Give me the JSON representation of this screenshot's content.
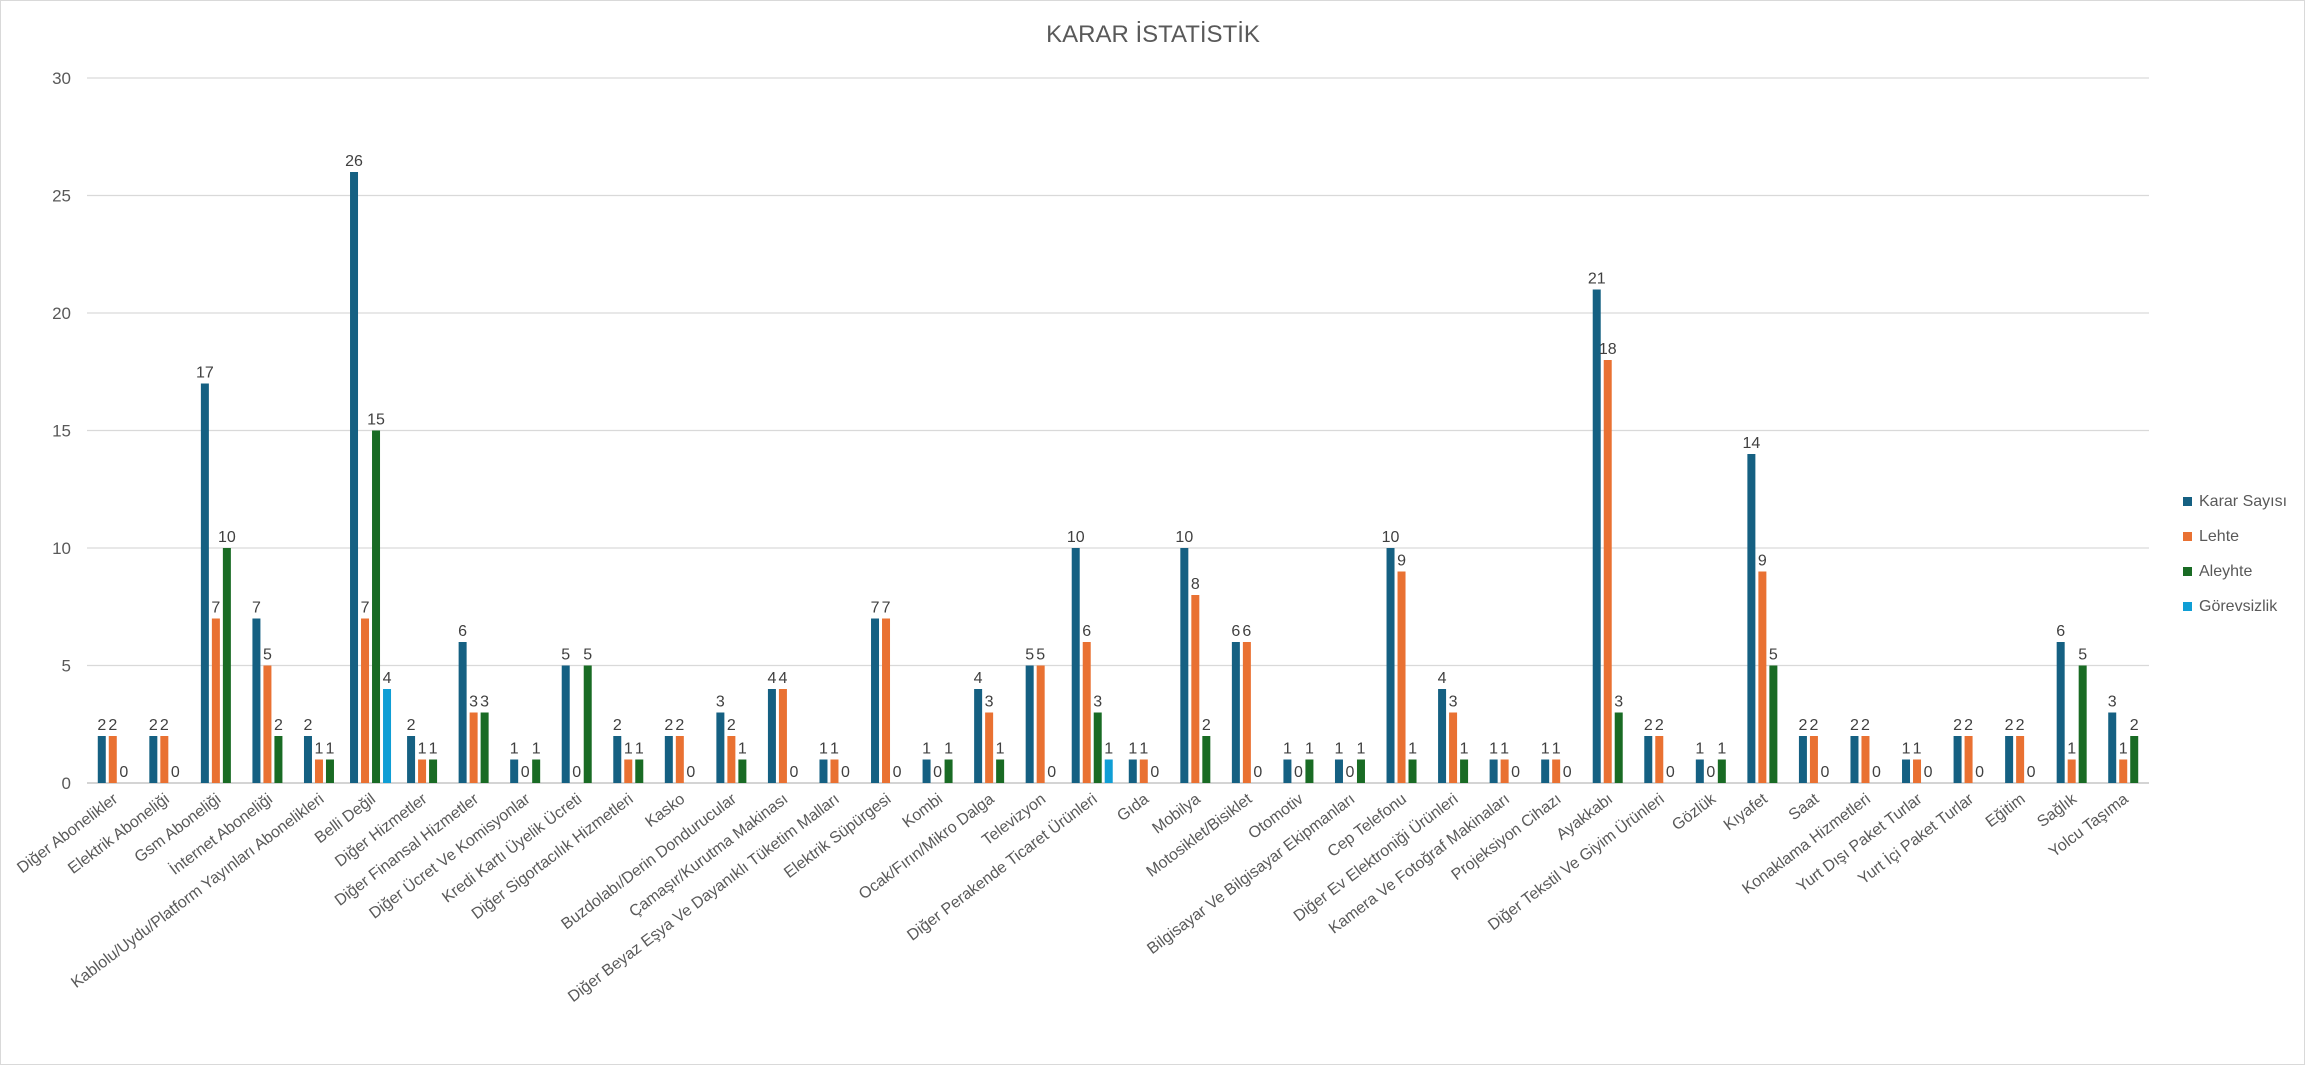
{
  "chart_data": {
    "type": "bar",
    "title": "KARAR İSTATİSTİK",
    "xlabel": "",
    "ylabel": "",
    "ylim": [
      0,
      30
    ],
    "yticks": [
      0,
      5,
      10,
      15,
      20,
      25,
      30
    ],
    "grid": true,
    "legend_position": "right",
    "categories": [
      "Diğer Abonelikler",
      "Elektrik Aboneliği",
      "Gsm Aboneliği",
      "İnternet Aboneliği",
      "Kablolu/Uydu/Platform Yayınları Abonelikleri",
      "Belli Değil",
      "Diğer Hizmetler",
      "Diğer Finansal Hizmetler",
      "Diğer Ücret Ve Komisyonlar",
      "Kredi Kartı Üyelik Ücreti",
      "Diğer Sigortacılık Hizmetleri",
      "Kasko",
      "Buzdolabı/Derin Dondurucular",
      "Çamaşır/Kurutma Makinası",
      "Diğer Beyaz Eşya Ve Dayanıklı Tüketim Malları",
      "Elektrik Süpürgesi",
      "Kombi",
      "Ocak/Fırın/Mikro Dalga",
      "Televizyon",
      "Diğer Perakende Ticaret Ürünleri",
      "Gıda",
      "Mobilya",
      "Motosiklet/Bisiklet",
      "Otomotiv",
      "Bilgisayar Ve Bilgisayar Ekipmanları",
      "Cep Telefonu",
      "Diğer Ev Elektroniği Ürünleri",
      "Kamera Ve Fotoğraf Makinaları",
      "Projeksiyon Cihazı",
      "Ayakkabı",
      "Diğer Tekstil Ve Giyim Ürünleri",
      "Gözlük",
      "Kıyafet",
      "Saat",
      "Konaklama Hizmetleri",
      "Yurt Dışı Paket Turlar",
      "Yurt İçi Paket Turlar",
      "Eğitim",
      "Sağlık",
      "Yolcu Taşıma"
    ],
    "series": [
      {
        "name": "Karar Sayısı",
        "color": "#156082",
        "values": [
          2,
          2,
          17,
          7,
          2,
          26,
          2,
          6,
          1,
          5,
          2,
          2,
          3,
          4,
          1,
          7,
          1,
          4,
          5,
          10,
          1,
          10,
          6,
          1,
          1,
          10,
          4,
          1,
          1,
          21,
          2,
          1,
          14,
          2,
          2,
          1,
          2,
          2,
          6,
          3
        ]
      },
      {
        "name": "Lehte",
        "color": "#E97132",
        "values": [
          2,
          2,
          7,
          5,
          1,
          7,
          1,
          3,
          0,
          0,
          1,
          2,
          2,
          4,
          1,
          7,
          0,
          3,
          5,
          6,
          1,
          8,
          6,
          0,
          0,
          9,
          3,
          1,
          1,
          18,
          2,
          0,
          9,
          2,
          2,
          1,
          2,
          2,
          1,
          1
        ]
      },
      {
        "name": "Aleyhte",
        "color": "#196B24",
        "values": [
          0,
          0,
          10,
          2,
          1,
          15,
          1,
          3,
          1,
          5,
          1,
          0,
          1,
          0,
          0,
          0,
          1,
          1,
          0,
          3,
          0,
          2,
          0,
          1,
          1,
          1,
          1,
          0,
          0,
          3,
          0,
          1,
          5,
          0,
          0,
          0,
          0,
          0,
          5,
          2
        ]
      },
      {
        "name": "Görevsizlik",
        "color": "#0F9ED5",
        "values": [
          0,
          0,
          0,
          0,
          0,
          4,
          0,
          0,
          0,
          0,
          0,
          0,
          0,
          0,
          0,
          0,
          0,
          0,
          0,
          1,
          0,
          0,
          0,
          0,
          0,
          0,
          0,
          0,
          0,
          0,
          0,
          0,
          0,
          0,
          0,
          0,
          0,
          0,
          0,
          0
        ]
      }
    ]
  }
}
